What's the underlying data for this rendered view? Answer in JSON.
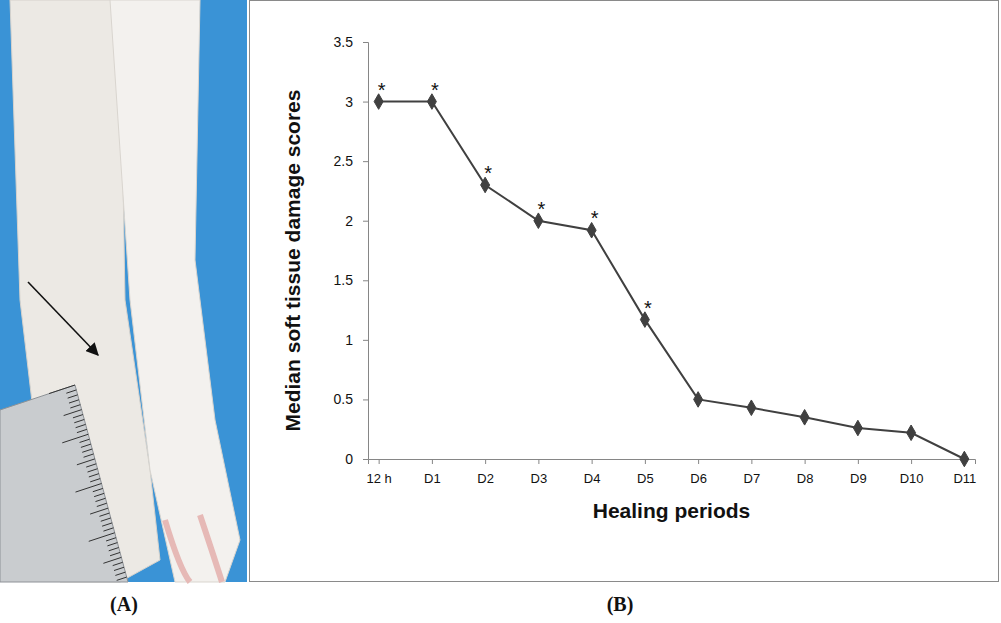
{
  "chart_data": {
    "type": "line",
    "panel_labels": [
      "(A)",
      "(B)"
    ],
    "x_label": "Healing periods",
    "y_label": "Median soft tissue damage scores",
    "categories": [
      "12 h",
      "D1",
      "D2",
      "D3",
      "D4",
      "D5",
      "D6",
      "D7",
      "D8",
      "D9",
      "D10",
      "D11"
    ],
    "values": [
      3,
      3,
      2.3,
      2,
      1.92,
      1.17,
      0.5,
      0.43,
      0.35,
      0.26,
      0.22,
      0
    ],
    "color": "#404040",
    "marker": "diamond",
    "line_style": "solid",
    "ylim": [
      0,
      3.5
    ],
    "yticks": [
      0,
      0.5,
      1,
      1.5,
      2,
      2.5,
      3,
      3.5
    ],
    "grid": false,
    "annotations": [
      {
        "text": "*",
        "category": "12 h"
      },
      {
        "text": "*",
        "category": "D1"
      },
      {
        "text": "*",
        "category": "D2"
      },
      {
        "text": "*",
        "category": "D3"
      },
      {
        "text": "*",
        "category": "D4"
      },
      {
        "text": "*",
        "category": "D5"
      }
    ]
  }
}
